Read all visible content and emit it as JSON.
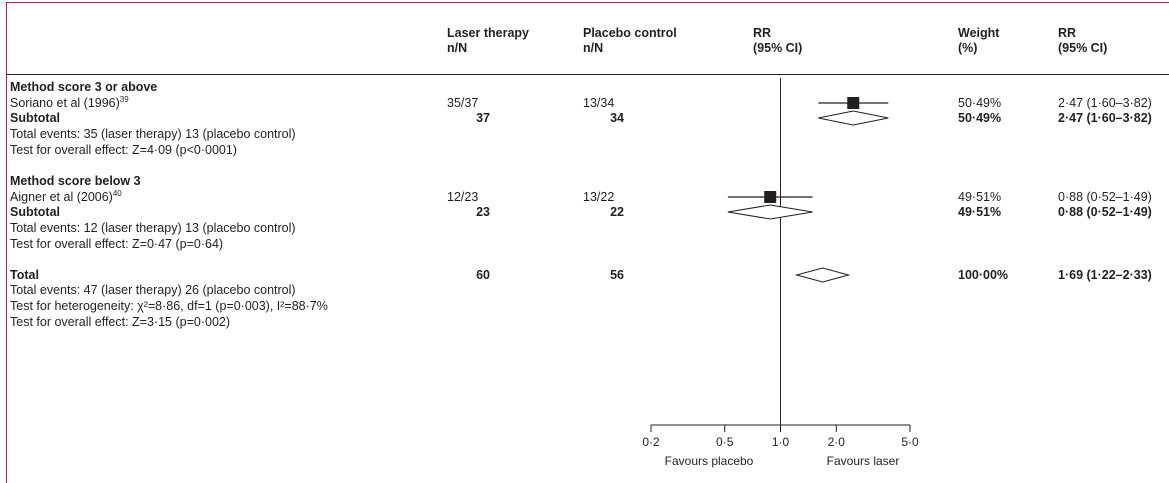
{
  "headers": {
    "laser": [
      "Laser therapy",
      "n/N"
    ],
    "placebo": [
      "Placebo control",
      "n/N"
    ],
    "rr_plot": [
      "RR",
      "(95% CI)"
    ],
    "weight": [
      "Weight",
      "(%)"
    ],
    "rr_text": [
      "RR",
      "(95% CI)"
    ]
  },
  "groups": [
    {
      "title": "Method score 3 or above",
      "study": {
        "name": "Soriano et al (1996)",
        "ref": "39",
        "laser": "35/37",
        "placebo": "13/34",
        "weight": "50·49%",
        "rr": "2·47 (1·60–3·82)"
      },
      "subtotal": {
        "label": "Subtotal",
        "laser": "37",
        "placebo": "34",
        "weight": "50·49%",
        "rr": "2·47 (1·60–3·82)"
      },
      "notes": [
        "Total events: 35 (laser therapy) 13 (placebo control)",
        "Test for overall effect: Z=4·09 (p<0·0001)"
      ]
    },
    {
      "title": "Method score below 3",
      "study": {
        "name": "Aigner et al (2006)",
        "ref": "40",
        "laser": "12/23",
        "placebo": "13/22",
        "weight": "49·51%",
        "rr": "0·88 (0·52–1·49)"
      },
      "subtotal": {
        "label": "Subtotal",
        "laser": "23",
        "placebo": "22",
        "weight": "49·51%",
        "rr": "0·88 (0·52–1·49)"
      },
      "notes": [
        "Total events: 12 (laser therapy) 13 (placebo control)",
        "Test for overall effect: Z=0·47 (p=0·64)"
      ]
    }
  ],
  "total": {
    "label": "Total",
    "laser": "60",
    "placebo": "56",
    "weight": "100·00%",
    "rr": "1·69 (1·22–2·33)",
    "notes": [
      "Total events: 47 (laser therapy) 26 (placebo control)",
      "Test for heterogeneity: χ²=8·86, df=1 (p=0·003), I²=88·7%",
      "Test for overall effect: Z=3·15 (p=0·002)"
    ]
  },
  "axis": {
    "favours_left": "Favours placebo",
    "favours_right": "Favours laser"
  },
  "chart_data": {
    "type": "forest",
    "scale": "log",
    "xlim": [
      0.2,
      5.0
    ],
    "null_value": 1.0,
    "ticks": [
      {
        "value": 0.2,
        "label": "0·2"
      },
      {
        "value": 0.5,
        "label": "0·5"
      },
      {
        "value": 1.0,
        "label": "1·0"
      },
      {
        "value": 2.0,
        "label": "2·0"
      },
      {
        "value": 5.0,
        "label": "5·0"
      }
    ],
    "studies": [
      {
        "name": "Soriano et al (1996)",
        "rr": 2.47,
        "lo": 1.6,
        "hi": 3.82,
        "weight": 50.49
      },
      {
        "name": "Aigner et al (2006)",
        "rr": 0.88,
        "lo": 0.52,
        "hi": 1.49,
        "weight": 49.51
      }
    ],
    "pooled": [
      {
        "name": "Subtotal (method score 3 or above)",
        "rr": 2.47,
        "lo": 1.6,
        "hi": 3.82
      },
      {
        "name": "Subtotal (method score below 3)",
        "rr": 0.88,
        "lo": 0.52,
        "hi": 1.49
      },
      {
        "name": "Total",
        "rr": 1.69,
        "lo": 1.22,
        "hi": 2.33
      }
    ],
    "colors": {
      "ink": "#231f20",
      "frame": "#c2185b"
    }
  }
}
